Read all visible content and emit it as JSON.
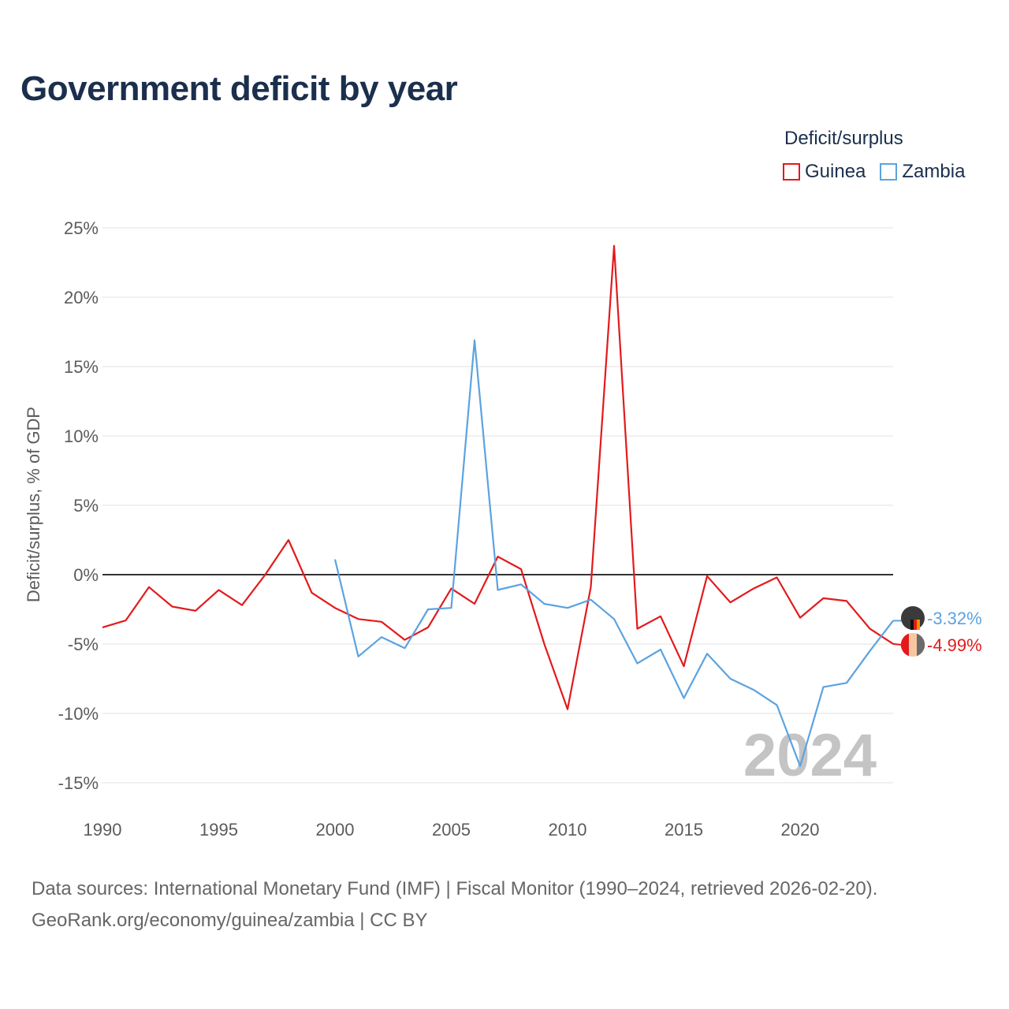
{
  "title": "Government deficit by year",
  "legend": {
    "title": "Deficit/surplus",
    "items": [
      {
        "name": "Guinea",
        "color": "#e31a1c"
      },
      {
        "name": "Zambia",
        "color": "#5ba3e0"
      }
    ]
  },
  "sources": {
    "line1": "Data sources: International Monetary Fund (IMF) | Fiscal Monitor (1990–2024, retrieved 2026-02-20).",
    "line2": "GeoRank.org/economy/guinea/zambia | CC BY"
  },
  "chart_data": {
    "type": "line",
    "title": "Government deficit by year",
    "xlabel": "",
    "ylabel": "Deficit/surplus, % of GDP",
    "xlim": [
      1990,
      2024
    ],
    "ylim": [
      -17,
      26
    ],
    "xticks": [
      1990,
      1995,
      2000,
      2005,
      2010,
      2015,
      2020
    ],
    "yticks": [
      25,
      20,
      15,
      10,
      5,
      0,
      -5,
      -10,
      -15
    ],
    "ytick_labels": [
      "25%",
      "20%",
      "15%",
      "10%",
      "5%",
      "0%",
      "-5%",
      "-10%",
      "-15%"
    ],
    "watermark_year": "2024",
    "series": [
      {
        "name": "Guinea",
        "color": "#e31a1c",
        "x": [
          1990,
          1991,
          1992,
          1993,
          1994,
          1995,
          1996,
          1997,
          1998,
          1999,
          2000,
          2001,
          2002,
          2003,
          2004,
          2005,
          2006,
          2007,
          2008,
          2009,
          2010,
          2011,
          2012,
          2013,
          2014,
          2015,
          2016,
          2017,
          2018,
          2019,
          2020,
          2021,
          2022,
          2023,
          2024
        ],
        "values": [
          -3.8,
          -3.3,
          -0.9,
          -2.3,
          -2.6,
          -1.1,
          -2.2,
          0.0,
          2.5,
          -1.3,
          -2.4,
          -3.2,
          -3.4,
          -4.7,
          -3.8,
          -1.0,
          -2.1,
          1.3,
          0.4,
          -5.0,
          -9.7,
          -0.9,
          23.7,
          -3.9,
          -3.0,
          -6.6,
          -0.1,
          -2.0,
          -1.0,
          -0.2,
          -3.1,
          -1.7,
          -1.9,
          -3.9,
          -4.99
        ],
        "end_label": "-4.99%"
      },
      {
        "name": "Zambia",
        "color": "#5ba3e0",
        "x": [
          2000,
          2001,
          2002,
          2003,
          2004,
          2005,
          2006,
          2007,
          2008,
          2009,
          2010,
          2011,
          2012,
          2013,
          2014,
          2015,
          2016,
          2017,
          2018,
          2019,
          2020,
          2021,
          2022,
          2023,
          2024
        ],
        "values": [
          1.1,
          -5.9,
          -4.5,
          -5.3,
          -2.5,
          -2.4,
          16.9,
          -1.1,
          -0.7,
          -2.1,
          -2.4,
          -1.8,
          -3.2,
          -6.4,
          -5.4,
          -8.9,
          -5.7,
          -7.5,
          -8.3,
          -9.4,
          -13.8,
          -8.1,
          -7.8,
          -5.5,
          -3.32
        ],
        "end_label": "-3.32%"
      }
    ]
  }
}
